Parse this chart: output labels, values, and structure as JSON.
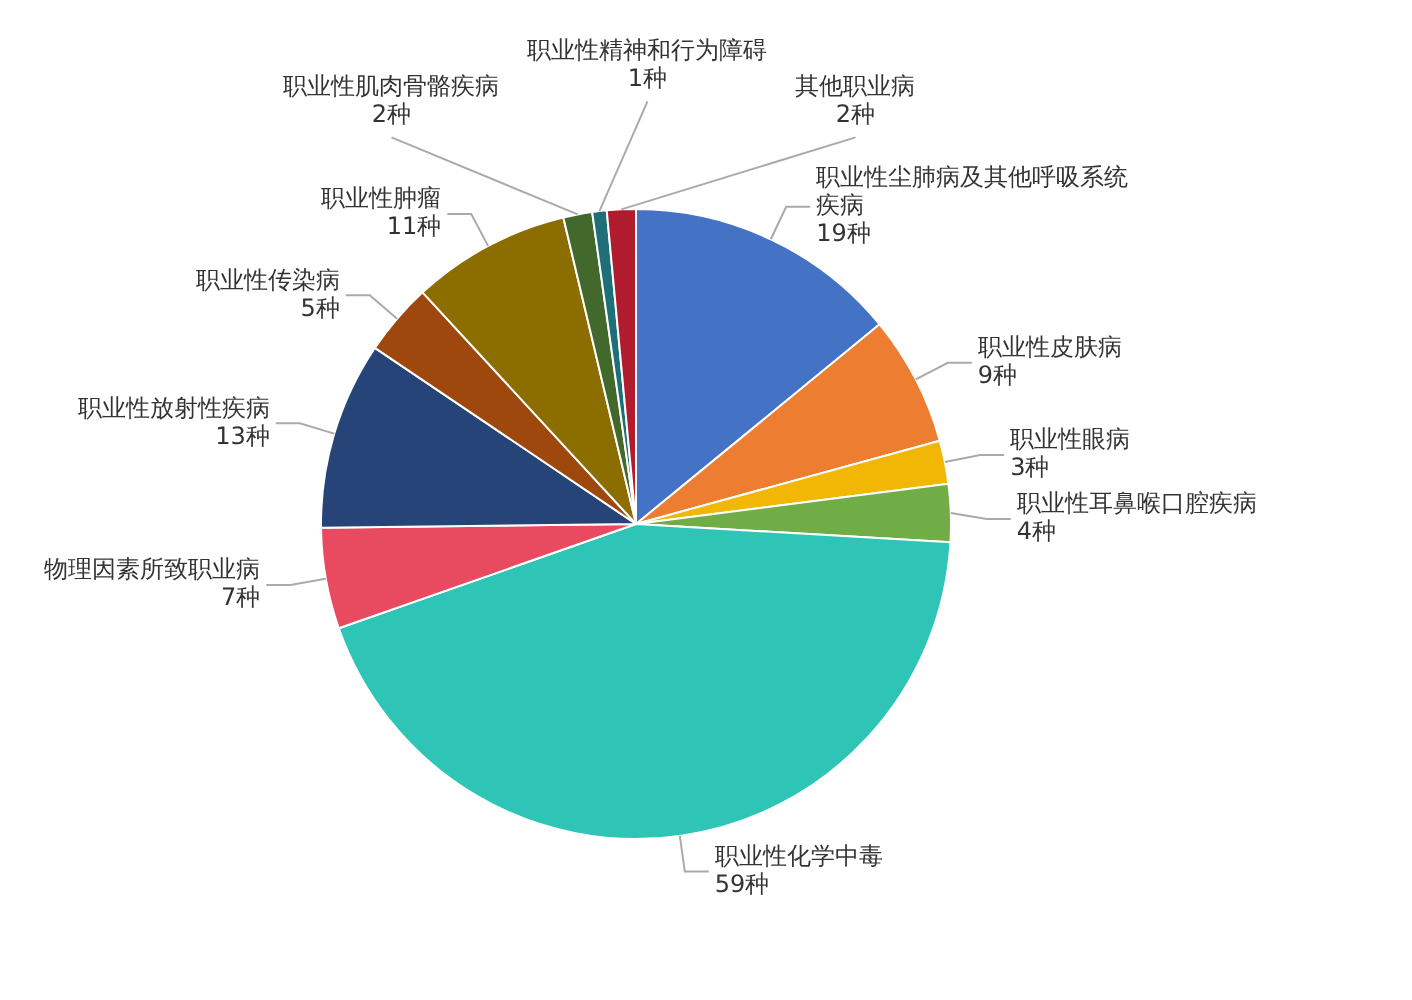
{
  "chart_data": {
    "type": "pie",
    "categories": [
      "职业性尘肺病及其他呼吸系统疾病",
      "职业性皮肤病",
      "职业性眼病",
      "职业性耳鼻喉口腔疾病",
      "职业性化学中毒",
      "物理因素所致职业病",
      "职业性放射性疾病",
      "职业性传染病",
      "职业性肿瘤",
      "职业性肌肉骨骼疾病",
      "职业性精神和行为障碍",
      "其他职业病"
    ],
    "values": [
      19,
      9,
      3,
      4,
      59,
      7,
      13,
      5,
      11,
      2,
      1,
      2
    ],
    "value_labels": [
      "19种",
      "9种",
      "3种",
      "4种",
      "59种",
      "7种",
      "13种",
      "5种",
      "11种",
      "2种",
      "1种",
      "2种"
    ],
    "colors": [
      "#4472c4",
      "#ed7d31",
      "#f2b705",
      "#70ad47",
      "#2ec4b6",
      "#e84a5f",
      "#264478",
      "#9e480e",
      "#8c6d00",
      "#43682b",
      "#1f6f78",
      "#b01c2e"
    ]
  }
}
